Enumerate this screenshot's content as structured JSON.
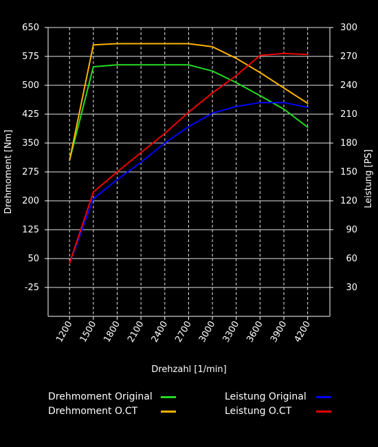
{
  "chart_data": {
    "type": "line",
    "x_label": "Drehzahl [1/min]",
    "y_left_label": "Drehmoment [Nm]",
    "y_right_label": "Leistung [PS]",
    "x": [
      1200,
      1500,
      1800,
      2100,
      2400,
      2700,
      3000,
      3300,
      3600,
      3900,
      4200
    ],
    "x_ticks": [
      "1200",
      "1500",
      "1800",
      "2100",
      "2400",
      "2700",
      "3000",
      "3300",
      "3600",
      "3900",
      "4200"
    ],
    "x_range": [
      930,
      4480
    ],
    "y_left_range": [
      -100,
      650
    ],
    "y_left_ticks": [
      "650",
      "575",
      "500",
      "425",
      "350",
      "275",
      "200",
      "125",
      "50",
      "-25"
    ],
    "y_right_range": [
      0,
      300
    ],
    "y_right_ticks": [
      "300",
      "270",
      "240",
      "210",
      "180",
      "150",
      "120",
      "90",
      "60",
      "30"
    ],
    "grid": true,
    "series": [
      {
        "name": "Drehmoment Original",
        "axis": "left",
        "color": "#22dd22",
        "values": [
          305,
          548,
          553,
          553,
          553,
          553,
          537,
          507,
          473,
          438,
          391
        ]
      },
      {
        "name": "Drehmoment O.CT",
        "axis": "left",
        "color": "#ffb300",
        "values": [
          305,
          605,
          608,
          608,
          608,
          608,
          600,
          570,
          533,
          493,
          453
        ]
      },
      {
        "name": "Leistung Original",
        "axis": "right",
        "color": "#0000ff",
        "values": [
          55,
          122,
          142,
          160,
          180,
          197,
          211,
          218,
          222,
          222,
          217
        ]
      },
      {
        "name": "Leistung O.CT",
        "axis": "right",
        "color": "#ee0000",
        "values": [
          55,
          129,
          150,
          170,
          190,
          212,
          232,
          250,
          271,
          273,
          272
        ]
      }
    ]
  }
}
